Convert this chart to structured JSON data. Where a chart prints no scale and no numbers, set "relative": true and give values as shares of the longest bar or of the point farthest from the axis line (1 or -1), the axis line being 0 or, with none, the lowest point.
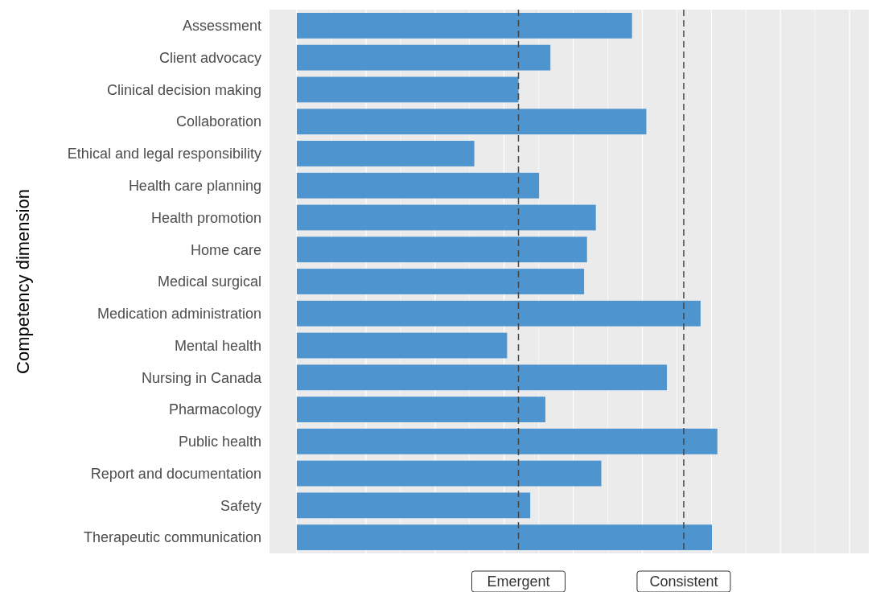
{
  "chart_data": {
    "type": "bar",
    "orientation": "horizontal",
    "relative": true,
    "ylabel": "Competency dimension",
    "grid": "x",
    "color": "#4e94cf",
    "categories": [
      "Assessment",
      "Client advocacy",
      "Clinical decision making",
      "Collaboration",
      "Ethical and legal responsibility",
      "Health care planning",
      "Health promotion",
      "Home care",
      "Medical surgical",
      "Medication administration",
      "Mental health",
      "Nursing in Canada",
      "Pharmacology",
      "Public health",
      "Report and documentation",
      "Safety",
      "Therapeutic communication"
    ],
    "values": [
      0.797,
      0.603,
      0.527,
      0.831,
      0.422,
      0.576,
      0.711,
      0.69,
      0.683,
      0.96,
      0.5,
      0.88,
      0.591,
      1,
      0.724,
      0.555,
      0.987
    ],
    "ref_lines": [
      {
        "axis": "x",
        "value": 0.527,
        "label": "Emergent",
        "line_style": "dashed",
        "color": "#444444"
      },
      {
        "axis": "x",
        "value": 0.92,
        "label": "Consistent",
        "line_style": "dashed",
        "color": "#444444"
      }
    ]
  }
}
